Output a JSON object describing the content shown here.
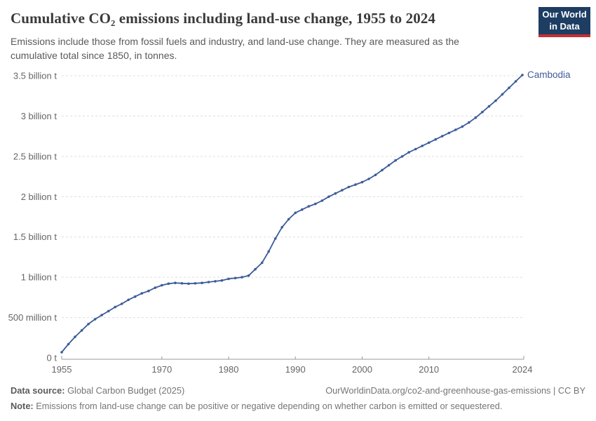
{
  "header": {
    "title": "Cumulative CO₂ emissions including land-use change, 1955 to 2024",
    "subtitle": "Emissions include those from fossil fuels and industry, and land-use change. They are measured as the cumulative total since 1850, in tonnes.",
    "logo": {
      "line1": "Our World",
      "line2": "in Data"
    }
  },
  "chart_data": {
    "type": "line",
    "title": "Cumulative CO₂ emissions including land-use change, 1955 to 2024",
    "entity_label": "Cambodia",
    "unit": "tonnes",
    "xlabel": "",
    "ylabel": "",
    "xlim": [
      1955,
      2024
    ],
    "ylim": [
      0,
      3.5
    ],
    "grid": "horizontal-dashed",
    "legend_position": "end-of-line",
    "x_ticks": [
      1955,
      1970,
      1980,
      1990,
      2000,
      2010,
      2024
    ],
    "y_ticks": [
      {
        "v": 0,
        "label": "0 t"
      },
      {
        "v": 0.5,
        "label": "500 million t"
      },
      {
        "v": 1,
        "label": "1 billion t"
      },
      {
        "v": 1.5,
        "label": "1.5 billion t"
      },
      {
        "v": 2,
        "label": "2 billion t"
      },
      {
        "v": 2.5,
        "label": "2.5 billion t"
      },
      {
        "v": 3,
        "label": "3 billion t"
      },
      {
        "v": 3.5,
        "label": "3.5 billion t"
      }
    ],
    "series": [
      {
        "name": "Cambodia",
        "color": "#3d5c99",
        "x": [
          1955,
          1956,
          1957,
          1958,
          1959,
          1960,
          1961,
          1962,
          1963,
          1964,
          1965,
          1966,
          1967,
          1968,
          1969,
          1970,
          1971,
          1972,
          1973,
          1974,
          1975,
          1976,
          1977,
          1978,
          1979,
          1980,
          1981,
          1982,
          1983,
          1984,
          1985,
          1986,
          1987,
          1988,
          1989,
          1990,
          1991,
          1992,
          1993,
          1994,
          1995,
          1996,
          1997,
          1998,
          1999,
          2000,
          2001,
          2002,
          2003,
          2004,
          2005,
          2006,
          2007,
          2008,
          2009,
          2010,
          2011,
          2012,
          2013,
          2014,
          2015,
          2016,
          2017,
          2018,
          2019,
          2020,
          2021,
          2022,
          2023,
          2024
        ],
        "values_billion_t": [
          0.07,
          0.17,
          0.26,
          0.34,
          0.42,
          0.48,
          0.53,
          0.58,
          0.63,
          0.67,
          0.72,
          0.76,
          0.8,
          0.83,
          0.87,
          0.9,
          0.92,
          0.93,
          0.925,
          0.92,
          0.925,
          0.93,
          0.94,
          0.95,
          0.96,
          0.98,
          0.99,
          1.0,
          1.02,
          1.1,
          1.18,
          1.32,
          1.48,
          1.62,
          1.72,
          1.8,
          1.84,
          1.88,
          1.91,
          1.95,
          2.0,
          2.04,
          2.08,
          2.12,
          2.15,
          2.18,
          2.22,
          2.27,
          2.33,
          2.39,
          2.45,
          2.5,
          2.55,
          2.59,
          2.63,
          2.67,
          2.71,
          2.75,
          2.79,
          2.83,
          2.87,
          2.92,
          2.98,
          3.05,
          3.12,
          3.19,
          3.27,
          3.35,
          3.43,
          3.51
        ]
      }
    ],
    "colors": {
      "line": "#3d5c99",
      "gridline": "#dddddd",
      "axis": "#999999",
      "tick_label": "#666666"
    }
  },
  "footer": {
    "source_label": "Data source:",
    "source_value": " Global Carbon Budget (2025)",
    "citation": "OurWorldinData.org/co2-and-greenhouse-gas-emissions | CC BY",
    "note_label": "Note:",
    "note_value": " Emissions from land-use change can be positive or negative depending on whether carbon is emitted or sequestered."
  }
}
